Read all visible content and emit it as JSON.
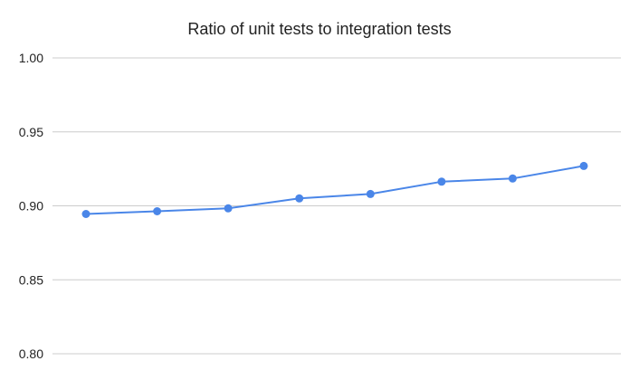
{
  "chart_data": {
    "type": "line",
    "title": "Ratio of unit tests to integration tests",
    "xlabel": "",
    "ylabel": "",
    "x_tick_labels": [],
    "ylim": [
      0.8,
      1.0
    ],
    "y_ticks": [
      "0.80",
      "0.85",
      "0.90",
      "0.95",
      "1.00"
    ],
    "grid": true,
    "legend": "none",
    "series": [
      {
        "color": "#4a86e8",
        "marker": "circle",
        "values": [
          0.8945,
          0.8963,
          0.8983,
          0.905,
          0.908,
          0.9163,
          0.9185,
          0.927
        ]
      }
    ]
  }
}
